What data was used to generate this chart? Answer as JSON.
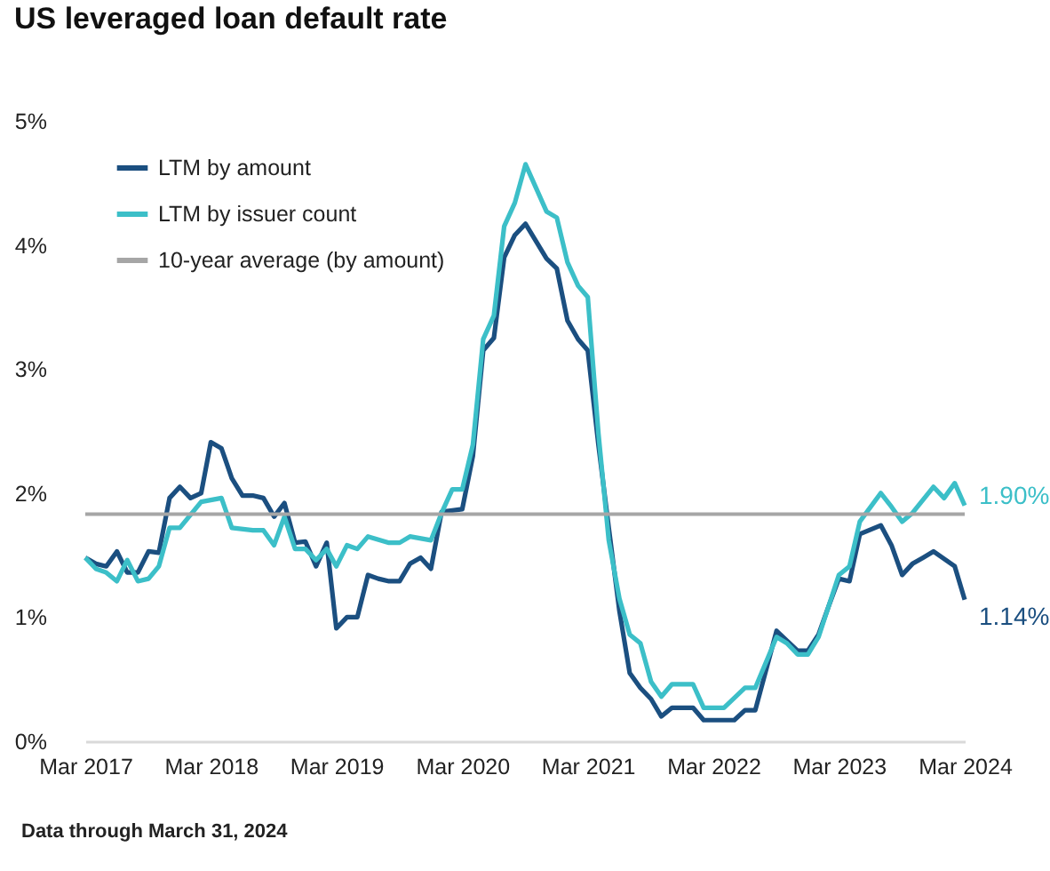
{
  "chart_data": {
    "type": "line",
    "title": "US leveraged loan default rate",
    "annotations": [
      "Data through March 31, 2024"
    ],
    "legend": "top left",
    "xlim": [
      "2017-03",
      "2024-03"
    ],
    "xticks": [
      {
        "value": "2017-03",
        "label": "Mar 2017"
      },
      {
        "value": "2018-03",
        "label": "Mar 2018"
      },
      {
        "value": "2019-03",
        "label": "Mar 2019"
      },
      {
        "value": "2020-03",
        "label": "Mar 2020"
      },
      {
        "value": "2021-03",
        "label": "Mar 2021"
      },
      {
        "value": "2022-03",
        "label": "Mar 2022"
      },
      {
        "value": "2023-03",
        "label": "Mar 2023"
      },
      {
        "value": "2024-03",
        "label": "Mar 2024"
      }
    ],
    "ylim": [
      0,
      5
    ],
    "yticks": [
      {
        "value": 0,
        "label": "0%"
      },
      {
        "value": 1,
        "label": "1%"
      },
      {
        "value": 2,
        "label": "2%"
      },
      {
        "value": 3,
        "label": "3%"
      },
      {
        "value": 4,
        "label": "4%"
      },
      {
        "value": 5,
        "label": "5%"
      }
    ],
    "ref_lines": [
      {
        "axis": "y",
        "value": 1.83,
        "label": "10-year average (by amount)",
        "color": "#a6a6a6"
      }
    ],
    "series": [
      {
        "name": "LTM by amount",
        "color": "#1b4f80",
        "x": [
          "2017-03",
          "2017-04",
          "2017-05",
          "2017-06",
          "2017-07",
          "2017-08",
          "2017-09",
          "2017-10",
          "2017-11",
          "2017-12",
          "2018-01",
          "2018-02",
          "2018-03",
          "2018-04",
          "2018-05",
          "2018-06",
          "2018-07",
          "2018-08",
          "2018-09",
          "2018-10",
          "2018-11",
          "2018-12",
          "2019-01",
          "2019-02",
          "2019-03",
          "2019-04",
          "2019-05",
          "2019-06",
          "2019-07",
          "2019-08",
          "2019-09",
          "2019-10",
          "2019-11",
          "2019-12",
          "2020-01",
          "2020-02",
          "2020-03",
          "2020-04",
          "2020-05",
          "2020-06",
          "2020-07",
          "2020-08",
          "2020-09",
          "2020-11",
          "2020-12",
          "2021-01",
          "2021-02",
          "2021-03",
          "2021-04",
          "2021-05",
          "2021-06",
          "2021-07",
          "2021-08",
          "2021-09",
          "2021-10",
          "2021-11",
          "2022-01",
          "2022-02",
          "2022-05",
          "2022-06",
          "2022-07",
          "2022-09",
          "2022-10",
          "2022-11",
          "2022-12",
          "2023-01",
          "2023-02",
          "2023-03",
          "2023-04",
          "2023-05",
          "2023-07",
          "2023-08",
          "2023-09",
          "2023-10",
          "2023-11",
          "2023-12",
          "2024-02",
          "2024-03"
        ],
        "values": [
          1.48,
          1.43,
          1.41,
          1.53,
          1.36,
          1.36,
          1.53,
          1.52,
          1.96,
          2.05,
          1.96,
          2.0,
          2.41,
          2.36,
          2.12,
          1.98,
          1.98,
          1.96,
          1.81,
          1.92,
          1.6,
          1.61,
          1.41,
          1.6,
          0.91,
          1.0,
          1.0,
          1.34,
          1.31,
          1.29,
          1.29,
          1.43,
          1.48,
          1.39,
          1.85,
          1.86,
          1.87,
          2.3,
          3.15,
          3.25,
          3.9,
          4.08,
          4.17,
          3.89,
          3.81,
          3.39,
          3.24,
          3.15,
          2.39,
          1.72,
          1.05,
          0.55,
          0.43,
          0.34,
          0.2,
          0.27,
          0.27,
          0.17,
          0.17,
          0.25,
          0.25,
          0.89,
          0.81,
          0.73,
          0.73,
          0.86,
          1.1,
          1.31,
          1.29,
          1.67,
          1.74,
          1.58,
          1.34,
          1.43,
          1.48,
          1.53,
          1.41,
          1.14
        ],
        "value_labels": [
          null,
          null,
          null,
          null,
          null,
          null,
          null,
          null,
          null,
          null,
          null,
          null,
          null,
          null,
          null,
          null,
          null,
          null,
          null,
          null,
          null,
          null,
          null,
          null,
          null,
          null,
          null,
          null,
          null,
          null,
          null,
          null,
          null,
          null,
          null,
          null,
          null,
          null,
          null,
          null,
          null,
          null,
          null,
          null,
          null,
          null,
          null,
          null,
          null,
          null,
          null,
          null,
          null,
          null,
          null,
          null,
          null,
          null,
          null,
          null,
          null,
          null,
          null,
          null,
          null,
          null,
          null,
          null,
          null,
          null,
          null,
          null,
          null,
          null,
          null,
          null,
          null,
          "1.14%"
        ]
      },
      {
        "name": "LTM by issuer count",
        "color": "#3cbfc8",
        "x": [
          "2017-03",
          "2017-04",
          "2017-05",
          "2017-06",
          "2017-07",
          "2017-08",
          "2017-09",
          "2017-10",
          "2017-11",
          "2017-12",
          "2018-02",
          "2018-04",
          "2018-05",
          "2018-07",
          "2018-08",
          "2018-09",
          "2018-10",
          "2018-11",
          "2018-12",
          "2019-01",
          "2019-02",
          "2019-03",
          "2019-04",
          "2019-05",
          "2019-06",
          "2019-08",
          "2019-09",
          "2019-10",
          "2019-12",
          "2020-01",
          "2020-02",
          "2020-03",
          "2020-04",
          "2020-05",
          "2020-06",
          "2020-07",
          "2020-08",
          "2020-09",
          "2020-11",
          "2020-12",
          "2021-01",
          "2021-02",
          "2021-03",
          "2021-04",
          "2021-05",
          "2021-06",
          "2021-07",
          "2021-08",
          "2021-09",
          "2021-10",
          "2021-11",
          "2022-01",
          "2022-02",
          "2022-04",
          "2022-06",
          "2022-07",
          "2022-09",
          "2022-10",
          "2022-11",
          "2022-12",
          "2023-01",
          "2023-03",
          "2023-04",
          "2023-05",
          "2023-07",
          "2023-08",
          "2023-09",
          "2023-10",
          "2023-12",
          "2024-01",
          "2024-02",
          "2024-03"
        ],
        "values": [
          1.48,
          1.39,
          1.36,
          1.29,
          1.46,
          1.29,
          1.31,
          1.41,
          1.72,
          1.72,
          1.93,
          1.96,
          1.72,
          1.7,
          1.7,
          1.58,
          1.81,
          1.55,
          1.55,
          1.46,
          1.55,
          1.41,
          1.58,
          1.55,
          1.65,
          1.6,
          1.6,
          1.65,
          1.62,
          1.84,
          2.03,
          2.03,
          2.39,
          3.24,
          3.43,
          4.15,
          4.34,
          4.65,
          4.27,
          4.22,
          3.86,
          3.67,
          3.58,
          2.48,
          1.62,
          1.15,
          0.86,
          0.79,
          0.48,
          0.36,
          0.46,
          0.46,
          0.27,
          0.27,
          0.43,
          0.43,
          0.84,
          0.79,
          0.7,
          0.7,
          0.84,
          1.34,
          1.41,
          1.77,
          2.0,
          1.89,
          1.77,
          1.84,
          2.05,
          1.96,
          2.08,
          1.9
        ],
        "value_labels": [
          null,
          null,
          null,
          null,
          null,
          null,
          null,
          null,
          null,
          null,
          null,
          null,
          null,
          null,
          null,
          null,
          null,
          null,
          null,
          null,
          null,
          null,
          null,
          null,
          null,
          null,
          null,
          null,
          null,
          null,
          null,
          null,
          null,
          null,
          null,
          null,
          null,
          null,
          null,
          null,
          null,
          null,
          null,
          null,
          null,
          null,
          null,
          null,
          null,
          null,
          null,
          null,
          null,
          null,
          null,
          null,
          null,
          null,
          null,
          null,
          null,
          null,
          null,
          null,
          null,
          null,
          null,
          null,
          null,
          null,
          null,
          "1.90%"
        ]
      }
    ]
  }
}
